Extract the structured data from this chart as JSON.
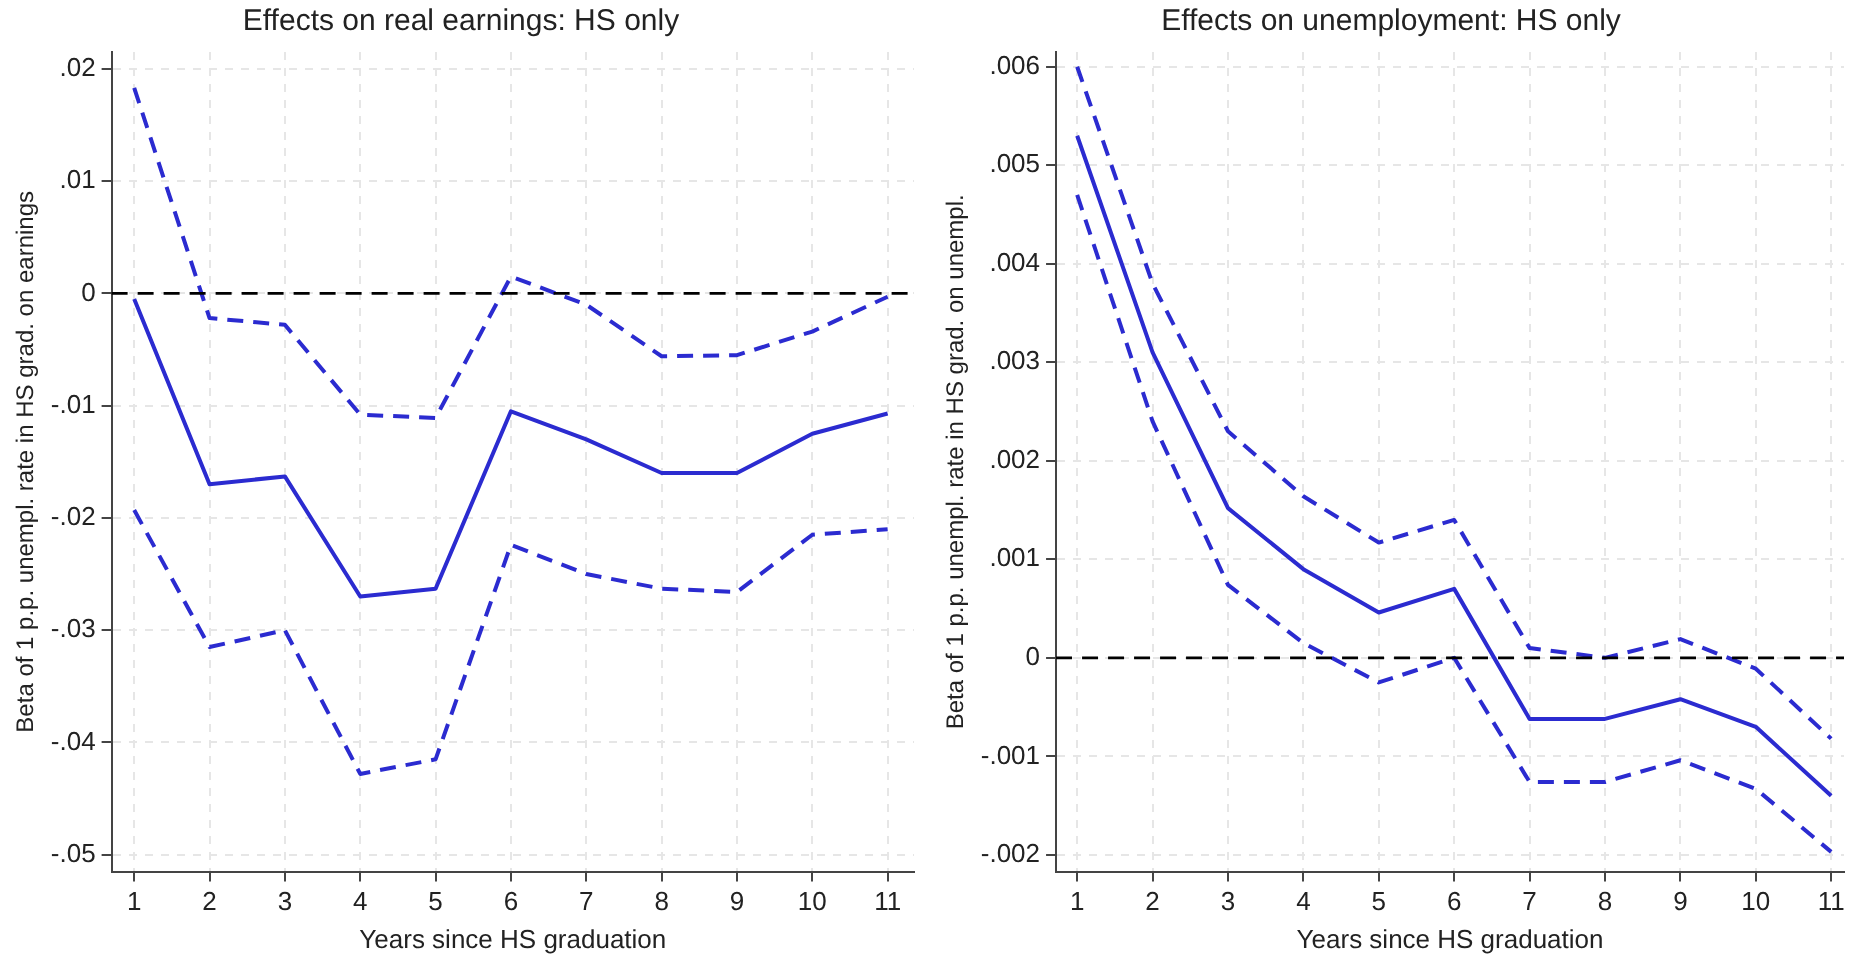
{
  "chart_data": [
    {
      "type": "line",
      "title": "Effects on real earnings: HS only",
      "xlabel": "Years since HS graduation",
      "ylabel": "Beta of 1 p.p. unempl. rate in HS grad. on earnings",
      "x": [
        1,
        2,
        3,
        4,
        5,
        6,
        7,
        8,
        9,
        10,
        11
      ],
      "series": [
        {
          "color": "#2b2bd0",
          "line_style": "dashed",
          "values": [
            0.0183,
            -0.0022,
            -0.0028,
            -0.0108,
            -0.0111,
            0.0015,
            -0.001,
            -0.0056,
            -0.0055,
            -0.0034,
            -0.0003
          ]
        },
        {
          "color": "#2b2bd0",
          "line_style": "solid",
          "values": [
            -0.0005,
            -0.017,
            -0.0163,
            -0.027,
            -0.0263,
            -0.0105,
            -0.013,
            -0.016,
            -0.016,
            -0.0125,
            -0.0107
          ]
        },
        {
          "color": "#2b2bd0",
          "line_style": "dashed",
          "values": [
            -0.0193,
            -0.0315,
            -0.03,
            -0.0428,
            -0.0415,
            -0.0224,
            -0.025,
            -0.0263,
            -0.0266,
            -0.0215,
            -0.021
          ]
        }
      ],
      "xlim": [
        0.7,
        11.35
      ],
      "xticks": [
        1,
        2,
        3,
        4,
        5,
        6,
        7,
        8,
        9,
        10,
        11
      ],
      "ylim": [
        -0.0515,
        0.0215
      ],
      "yticks": [
        {
          "value": -0.05,
          "label": "-.05"
        },
        {
          "value": -0.04,
          "label": "-.04"
        },
        {
          "value": -0.03,
          "label": "-.03"
        },
        {
          "value": -0.02,
          "label": "-.02"
        },
        {
          "value": -0.01,
          "label": "-.01"
        },
        0,
        {
          "value": 0.01,
          "label": ".01"
        },
        {
          "value": 0.02,
          "label": ".02"
        }
      ],
      "ref_lines": [
        {
          "axis": "y",
          "value": 0,
          "color": "#000000",
          "line_style": "dashed"
        }
      ],
      "grid": true,
      "legend": false,
      "marker": "none"
    },
    {
      "type": "line",
      "title": "Effects on unemployment: HS only",
      "xlabel": "Years since HS graduation",
      "ylabel": "Beta of 1 p.p. unempl. rate in HS grad. on unempl.",
      "x": [
        1,
        2,
        3,
        4,
        5,
        6,
        7,
        8,
        9,
        10,
        11
      ],
      "series": [
        {
          "color": "#2b2bd0",
          "line_style": "dashed",
          "values": [
            0.006,
            0.0038,
            0.0023,
            0.00164,
            0.00117,
            0.0014,
            0.0001,
            0.0,
            0.00019,
            -0.00011,
            -0.00082
          ]
        },
        {
          "color": "#2b2bd0",
          "line_style": "solid",
          "values": [
            0.0053,
            0.0031,
            0.00152,
            0.0009,
            0.00046,
            0.0007,
            -0.00062,
            -0.00062,
            -0.00042,
            -0.0007,
            -0.0014
          ]
        },
        {
          "color": "#2b2bd0",
          "line_style": "dashed",
          "values": [
            0.0047,
            0.0024,
            0.00074,
            0.00015,
            -0.00025,
            0.0,
            -0.00126,
            -0.00126,
            -0.00104,
            -0.00133,
            -0.00197
          ]
        }
      ],
      "xlim": [
        0.72,
        11.17
      ],
      "xticks": [
        1,
        2,
        3,
        4,
        5,
        6,
        7,
        8,
        9,
        10,
        11
      ],
      "ylim": [
        -0.00217,
        0.00615
      ],
      "yticks": [
        {
          "value": -0.002,
          "label": "-.002"
        },
        {
          "value": -0.001,
          "label": "-.001"
        },
        0,
        {
          "value": 0.001,
          "label": ".001"
        },
        {
          "value": 0.002,
          "label": ".002"
        },
        {
          "value": 0.003,
          "label": ".003"
        },
        {
          "value": 0.004,
          "label": ".004"
        },
        {
          "value": 0.005,
          "label": ".005"
        },
        {
          "value": 0.006,
          "label": ".006"
        }
      ],
      "ref_lines": [
        {
          "axis": "y",
          "value": 0,
          "color": "#000000",
          "line_style": "dashed"
        }
      ],
      "grid": true,
      "legend": false,
      "marker": "none"
    }
  ]
}
